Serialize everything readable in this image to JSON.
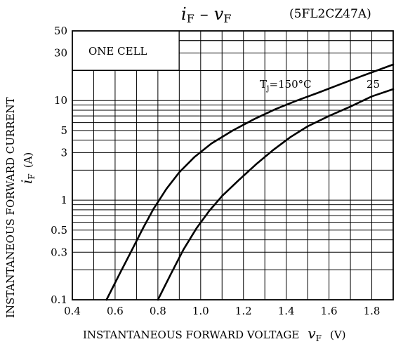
{
  "chart_data": {
    "type": "line",
    "title": "iF – vF",
    "title_parts": {
      "i": "i",
      "i_sub": "F",
      "dash": "–",
      "v": "v",
      "v_sub": "F"
    },
    "part_number": "(5FL2CZ47A)",
    "box_label": "ONE CELL",
    "xlabel": "INSTANTANEOUS FORWARD VOLTAGE",
    "xlabel_symbol": "v",
    "xlabel_symbol_sub": "F",
    "xlabel_unit": "(V)",
    "ylabel": "INSTANTANEOUS FORWARD CURRENT",
    "ylabel_symbol": "i",
    "ylabel_symbol_sub": "F",
    "ylabel_unit": "(A)",
    "xlim": [
      0.4,
      1.9
    ],
    "ylim": [
      0.1,
      50
    ],
    "y_scale": "log",
    "grid": true,
    "x_ticks": [
      0.4,
      0.6,
      0.8,
      1.0,
      1.2,
      1.4,
      1.6,
      1.8
    ],
    "x_tick_labels": [
      "0.4",
      "0.6",
      "0.8",
      "1.0",
      "1.2",
      "1.4",
      "1.6",
      "1.8"
    ],
    "y_ticks": [
      0.1,
      0.3,
      0.5,
      1,
      3,
      5,
      10,
      30,
      50
    ],
    "y_tick_labels": [
      "0.1",
      "0.3",
      "0.5",
      "1",
      "3",
      "5",
      "10",
      "30",
      "50"
    ],
    "series": [
      {
        "name": "Tj=150°C",
        "label_prefix": "T",
        "label_sub": "j",
        "label_suffix": "=150°C",
        "x": [
          0.56,
          0.62,
          0.68,
          0.73,
          0.78,
          0.84,
          0.9,
          0.97,
          1.05,
          1.15,
          1.25,
          1.35,
          1.45,
          1.55,
          1.65,
          1.75,
          1.85,
          1.9
        ],
        "y": [
          0.1,
          0.18,
          0.32,
          0.52,
          0.82,
          1.3,
          1.9,
          2.7,
          3.7,
          5.0,
          6.5,
          8.2,
          10,
          12,
          14.5,
          17.5,
          21,
          23
        ]
      },
      {
        "name": "25",
        "label_prefix": "25",
        "label_sub": "",
        "label_suffix": "",
        "x": [
          0.8,
          0.86,
          0.92,
          0.98,
          1.04,
          1.1,
          1.18,
          1.26,
          1.34,
          1.42,
          1.5,
          1.6,
          1.7,
          1.8,
          1.9
        ],
        "y": [
          0.1,
          0.18,
          0.32,
          0.52,
          0.78,
          1.1,
          1.6,
          2.3,
          3.2,
          4.3,
          5.5,
          7.0,
          8.7,
          11,
          13
        ]
      }
    ]
  }
}
